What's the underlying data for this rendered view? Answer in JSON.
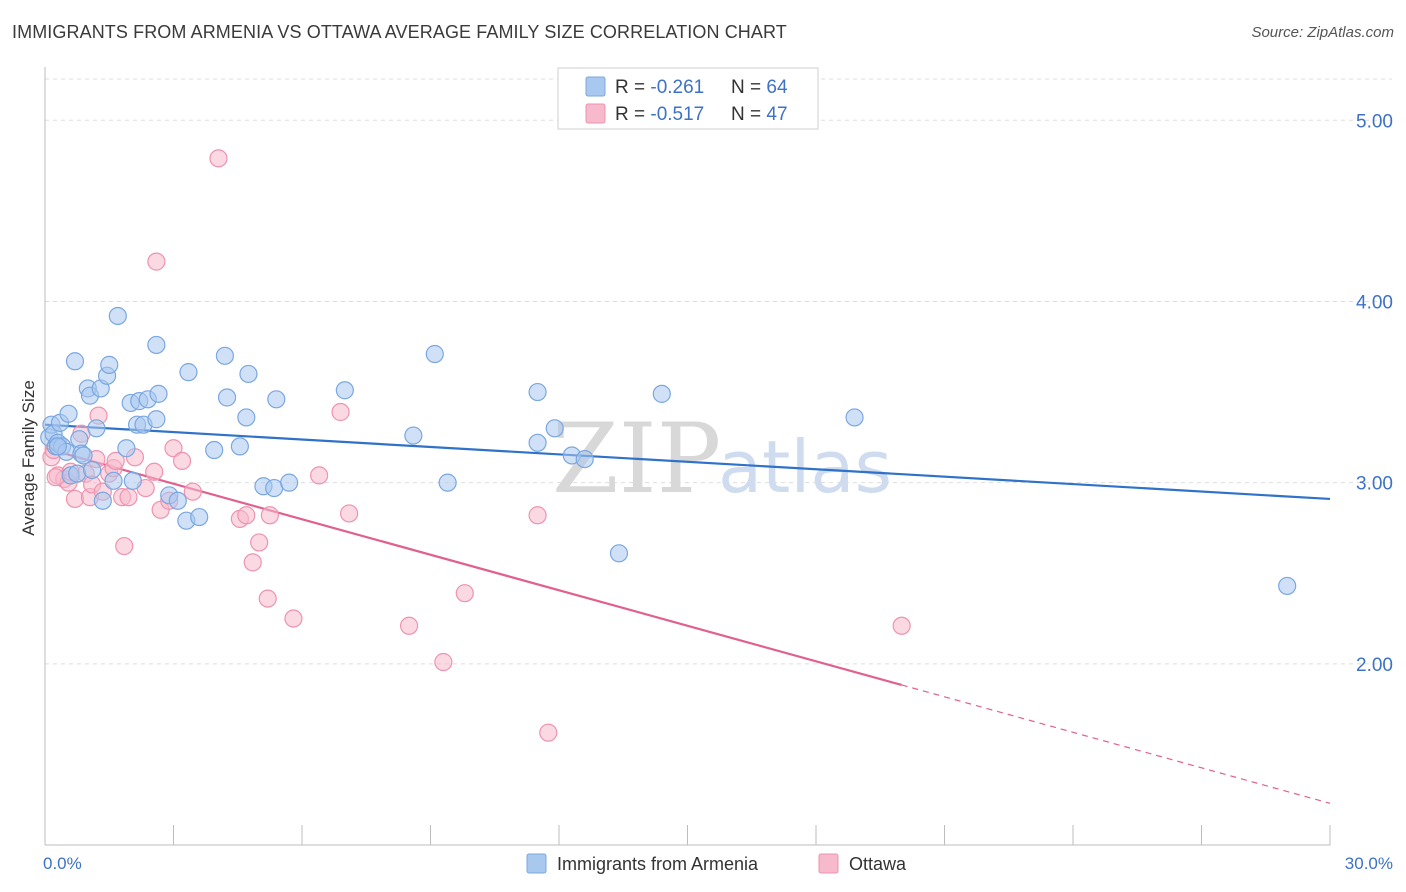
{
  "title": "IMMIGRANTS FROM ARMENIA VS OTTAWA AVERAGE FAMILY SIZE CORRELATION CHART",
  "source": "Source: ZipAtlas.com",
  "watermark": {
    "zip": "ZIP",
    "atlas": "atlas"
  },
  "colors": {
    "blue_fill": "#a9c8f0",
    "blue_stroke": "#7aa7e0",
    "blue_line": "#2f72c8",
    "pink_fill": "#f7b9cc",
    "pink_stroke": "#ee93af",
    "pink_line": "#e0608f",
    "tick_text": "#3d72c7",
    "grid": "#dddddd"
  },
  "legend": {
    "rows": [
      {
        "r_label": "R = ",
        "r_value": "-0.261",
        "n_label": "N = ",
        "n_value": "64"
      },
      {
        "r_label": "R = ",
        "r_value": "-0.517",
        "n_label": "N = ",
        "n_value": "47"
      }
    ]
  },
  "chart_data": {
    "type": "scatter",
    "title": "IMMIGRANTS FROM ARMENIA VS OTTAWA AVERAGE FAMILY SIZE CORRELATION CHART",
    "xlabel": "",
    "ylabel": "Average Family Size",
    "xlim": [
      0,
      30
    ],
    "ylim": [
      1.0,
      5.25
    ],
    "x_tick_labels": [
      "0.0%",
      "30.0%"
    ],
    "x_tick_values": [
      0,
      30
    ],
    "y_tick_labels": [
      "2.00",
      "3.00",
      "4.00",
      "5.00"
    ],
    "y_tick_values": [
      2,
      3,
      4,
      5
    ],
    "grid": true,
    "series": [
      {
        "name": "Immigrants from Armenia",
        "trend": {
          "x0": 0,
          "y0": 3.32,
          "x1": 30,
          "y1": 2.91,
          "dashed_from": null
        },
        "points": [
          [
            0.1,
            3.25
          ],
          [
            0.15,
            3.32
          ],
          [
            0.2,
            3.27
          ],
          [
            0.25,
            3.2
          ],
          [
            0.3,
            3.22
          ],
          [
            0.35,
            3.33
          ],
          [
            0.4,
            3.2
          ],
          [
            0.5,
            3.17
          ],
          [
            0.55,
            3.38
          ],
          [
            0.6,
            3.04
          ],
          [
            0.7,
            3.67
          ],
          [
            0.75,
            3.05
          ],
          [
            0.8,
            3.24
          ],
          [
            0.85,
            3.16
          ],
          [
            1.0,
            3.52
          ],
          [
            1.05,
            3.48
          ],
          [
            1.1,
            3.07
          ],
          [
            1.2,
            3.3
          ],
          [
            1.3,
            3.52
          ],
          [
            1.35,
            2.9
          ],
          [
            1.45,
            3.59
          ],
          [
            1.5,
            3.65
          ],
          [
            1.6,
            3.01
          ],
          [
            1.7,
            3.92
          ],
          [
            1.9,
            3.19
          ],
          [
            2.0,
            3.44
          ],
          [
            2.05,
            3.01
          ],
          [
            2.15,
            3.32
          ],
          [
            2.2,
            3.45
          ],
          [
            2.3,
            3.32
          ],
          [
            2.4,
            3.46
          ],
          [
            2.6,
            3.35
          ],
          [
            2.6,
            3.76
          ],
          [
            2.65,
            3.49
          ],
          [
            2.9,
            2.93
          ],
          [
            3.1,
            2.9
          ],
          [
            3.3,
            2.79
          ],
          [
            3.35,
            3.61
          ],
          [
            3.6,
            2.81
          ],
          [
            3.95,
            3.18
          ],
          [
            4.2,
            3.7
          ],
          [
            4.25,
            3.47
          ],
          [
            4.55,
            3.2
          ],
          [
            4.7,
            3.36
          ],
          [
            4.75,
            3.6
          ],
          [
            5.1,
            2.98
          ],
          [
            5.35,
            2.97
          ],
          [
            5.4,
            3.46
          ],
          [
            5.7,
            3.0
          ],
          [
            7.0,
            3.51
          ],
          [
            8.6,
            3.26
          ],
          [
            9.1,
            3.71
          ],
          [
            9.4,
            3.0
          ],
          [
            11.5,
            3.5
          ],
          [
            11.5,
            3.22
          ],
          [
            11.9,
            3.3
          ],
          [
            12.3,
            3.15
          ],
          [
            12.6,
            3.13
          ],
          [
            13.4,
            2.61
          ],
          [
            14.4,
            3.49
          ],
          [
            18.9,
            3.36
          ],
          [
            29.0,
            2.43
          ],
          [
            0.3,
            3.2
          ],
          [
            0.9,
            3.15
          ]
        ]
      },
      {
        "name": "Ottawa",
        "trend": {
          "x0": 0,
          "y0": 3.19,
          "x1": 30,
          "y1": 1.23,
          "dashed_from": 20
        },
        "points": [
          [
            0.15,
            3.14
          ],
          [
            0.2,
            3.18
          ],
          [
            0.3,
            3.04
          ],
          [
            0.45,
            3.02
          ],
          [
            0.55,
            3.0
          ],
          [
            0.6,
            3.06
          ],
          [
            0.7,
            2.91
          ],
          [
            0.85,
            3.27
          ],
          [
            0.95,
            3.05
          ],
          [
            1.05,
            2.92
          ],
          [
            1.1,
            2.99
          ],
          [
            1.2,
            3.13
          ],
          [
            1.25,
            3.37
          ],
          [
            1.35,
            2.95
          ],
          [
            1.5,
            3.05
          ],
          [
            1.6,
            3.08
          ],
          [
            1.65,
            3.12
          ],
          [
            1.8,
            2.92
          ],
          [
            1.85,
            2.65
          ],
          [
            1.95,
            2.92
          ],
          [
            2.1,
            3.14
          ],
          [
            2.35,
            2.97
          ],
          [
            2.55,
            3.06
          ],
          [
            2.6,
            4.22
          ],
          [
            2.7,
            2.85
          ],
          [
            2.9,
            2.9
          ],
          [
            3.0,
            3.19
          ],
          [
            3.2,
            3.12
          ],
          [
            3.45,
            2.95
          ],
          [
            4.05,
            4.79
          ],
          [
            4.55,
            2.8
          ],
          [
            4.7,
            2.82
          ],
          [
            4.85,
            2.56
          ],
          [
            5.0,
            2.67
          ],
          [
            5.2,
            2.36
          ],
          [
            5.25,
            2.82
          ],
          [
            5.8,
            2.25
          ],
          [
            6.4,
            3.04
          ],
          [
            6.9,
            3.39
          ],
          [
            7.1,
            2.83
          ],
          [
            8.5,
            2.21
          ],
          [
            9.3,
            2.01
          ],
          [
            9.8,
            2.39
          ],
          [
            11.5,
            2.82
          ],
          [
            11.75,
            1.62
          ],
          [
            20.0,
            2.21
          ],
          [
            0.25,
            3.03
          ]
        ]
      }
    ]
  },
  "bottom_legend": [
    {
      "label": "Immigrants from Armenia"
    },
    {
      "label": "Ottawa"
    }
  ]
}
